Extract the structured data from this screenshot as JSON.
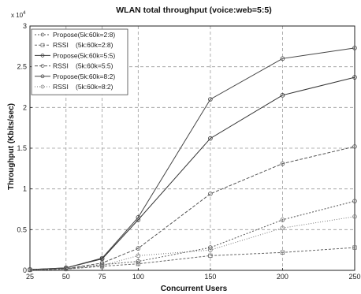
{
  "chart_data": {
    "type": "line",
    "title": "WLAN total throughput (voice:web=5:5)",
    "xlabel": "Concurrent Users",
    "ylabel": "Throughput (Kbits/sec)",
    "y_multiplier_label": "x 10",
    "y_multiplier_exp": "4",
    "x": [
      25,
      50,
      75,
      100,
      150,
      200,
      250
    ],
    "x_ticks": [
      "25",
      "50",
      "75",
      "100",
      "150",
      "200",
      "250"
    ],
    "y_ticks": [
      "0",
      "0.5",
      "1",
      "1.5",
      "2",
      "2.5",
      "3"
    ],
    "y_tick_values": [
      0,
      0.5,
      1,
      1.5,
      2,
      2.5,
      3
    ],
    "xlim": [
      25,
      250
    ],
    "ylim": [
      0,
      3
    ],
    "grid": true,
    "legend_position": "top-left",
    "series": [
      {
        "name": "Propose(5k:60k=2:8)",
        "name_left": "Propose(5k:60k=2:8)",
        "name_right": "",
        "color": "#555555",
        "dash": "2,2",
        "marker": "circle",
        "values": [
          0.01,
          0.02,
          0.07,
          0.11,
          0.28,
          0.62,
          0.85
        ]
      },
      {
        "name": "RSSI (5k:60k=2:8)",
        "name_left": "RSSI",
        "name_right": "(5k:60k=2:8)",
        "color": "#666666",
        "dash": "3,2",
        "marker": "square",
        "values": [
          0.005,
          0.015,
          0.05,
          0.08,
          0.18,
          0.22,
          0.28
        ]
      },
      {
        "name": "Propose(5k:60k=5:5)",
        "name_left": "Propose(5k:60k=5:5)",
        "name_right": "",
        "color": "#333333",
        "dash": "",
        "marker": "circle",
        "values": [
          0.01,
          0.03,
          0.14,
          0.62,
          1.62,
          2.15,
          2.37
        ]
      },
      {
        "name": "RSSI (5k:60k=5:5)",
        "name_left": "RSSI",
        "name_right": "(5k:60k=5:5)",
        "color": "#555555",
        "dash": "4,2",
        "marker": "circle",
        "values": [
          0.01,
          0.02,
          0.09,
          0.27,
          0.94,
          1.31,
          1.52
        ]
      },
      {
        "name": "Propose(5k:60k=8:2)",
        "name_left": "Propose(5k:60k=8:2)",
        "name_right": "",
        "color": "#444444",
        "dash": "",
        "marker": "circle",
        "values": [
          0.01,
          0.03,
          0.15,
          0.65,
          2.1,
          2.6,
          2.73
        ]
      },
      {
        "name": "RSSI (5k:60k=8:2)",
        "name_left": "RSSI",
        "name_right": "(5k:60k=8:2)",
        "color": "#777777",
        "dash": "1,2",
        "marker": "circle",
        "values": [
          0.005,
          0.015,
          0.06,
          0.18,
          0.25,
          0.52,
          0.66
        ]
      }
    ]
  }
}
